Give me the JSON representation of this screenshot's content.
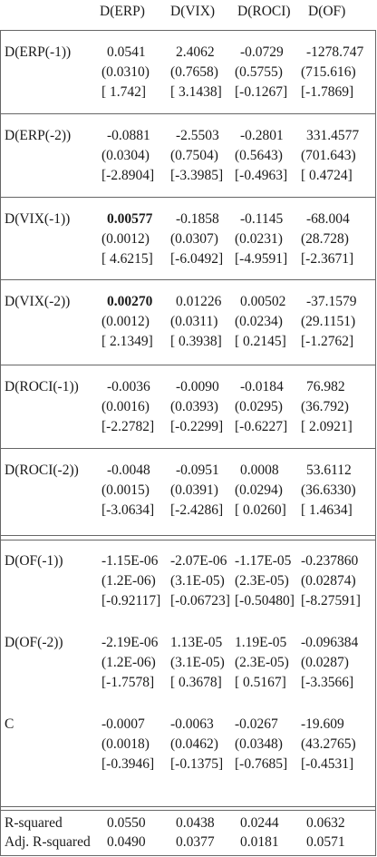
{
  "headers": [
    "D(ERP)",
    "D(VIX)",
    "D(ROCI)",
    "D(OF)"
  ],
  "blocks": [
    {
      "label": "D(ERP(-1))",
      "rows": [
        [
          "0.0541",
          "2.4062",
          "-0.0729",
          "-1278.747"
        ],
        [
          "(0.0310)",
          "(0.7658)",
          "(0.5755)",
          "(715.616)"
        ],
        [
          "[ 1.742]",
          "[ 3.1438]",
          "[-0.1267]",
          "[-1.7869]"
        ]
      ]
    },
    {
      "label": "D(ERP(-2))",
      "rows": [
        [
          "-0.0881",
          "-2.5503",
          "-0.2801",
          "331.4577"
        ],
        [
          "(0.0304)",
          "(0.7504)",
          "(0.5643)",
          "(701.643)"
        ],
        [
          "[-2.8904]",
          "[-3.3985]",
          "[-0.4963]",
          "[ 0.4724]"
        ]
      ]
    },
    {
      "label": "D(VIX(-1))",
      "rows": [
        [
          "0.00577",
          "-0.1858",
          "-0.1145",
          "-68.004"
        ],
        [
          "(0.0012)",
          "(0.0307)",
          "(0.0231)",
          "(28.728)"
        ],
        [
          "[ 4.6215]",
          "[-6.0492]",
          "[-4.9591]",
          "[-2.3671]"
        ]
      ]
    },
    {
      "label": "D(VIX(-2))",
      "rows": [
        [
          "0.00270",
          "0.01226",
          "0.00502",
          "-37.1579"
        ],
        [
          "(0.0012)",
          "(0.0311)",
          "(0.0234)",
          "(29.1151)"
        ],
        [
          "[ 2.1349]",
          "[ 0.3938]",
          "[ 0.2145]",
          "[-1.2762]"
        ]
      ]
    },
    {
      "label": "D(ROCI(-1))",
      "rows": [
        [
          "-0.0036",
          "-0.0090",
          "-0.0184",
          "76.982"
        ],
        [
          "(0.0016)",
          "(0.0393)",
          "(0.0295)",
          "(36.792)"
        ],
        [
          "[-2.2782]",
          "[-0.2299]",
          "[-0.6227]",
          "[ 2.0921]"
        ]
      ]
    },
    {
      "label": "D(ROCI(-2))",
      "rows": [
        [
          "-0.0048",
          "-0.0951",
          "0.0008",
          "53.6112"
        ],
        [
          "(0.0015)",
          "(0.0391)",
          "(0.0294)",
          "(36.6330)"
        ],
        [
          "[-3.0634]",
          "[-2.4286]",
          "[ 0.0260]",
          "[ 1.4634]"
        ]
      ]
    },
    {
      "label": "D(OF(-1))",
      "rows": [
        [
          "-1.15E-06",
          "-2.07E-06",
          "-1.17E-05",
          "-0.237860"
        ],
        [
          "(1.2E-06)",
          "(3.1E-05)",
          "(2.3E-05)",
          "(0.02874)"
        ],
        [
          "[-0.92117]",
          "[-0.06723]",
          "[-0.50480]",
          "[-8.27591]"
        ]
      ]
    },
    {
      "label": "D(OF(-2))",
      "rows": [
        [
          "-2.19E-06",
          "1.13E-05",
          "1.19E-05",
          "-0.096384"
        ],
        [
          "(1.2E-06)",
          "(3.1E-05)",
          "(2.3E-05)",
          "(0.0287)"
        ],
        [
          "[-1.7578]",
          "[ 0.3678]",
          "[ 0.5167]",
          "[-3.3566]"
        ]
      ]
    },
    {
      "label": "C",
      "rows": [
        [
          "-0.0007",
          "-0.0063",
          "-0.0267",
          "-19.609"
        ],
        [
          "(0.0018)",
          "(0.0462)",
          "(0.0348)",
          "(43.2765)"
        ],
        [
          "[-0.3946]",
          "[-0.1375]",
          "[-0.7685]",
          "[-0.4531]"
        ]
      ]
    }
  ],
  "stats": [
    {
      "label": "R-squared",
      "values": [
        "0.0550",
        "0.0438",
        "0.0244",
        "0.0632"
      ]
    },
    {
      "label": "Adj. R-squared",
      "values": [
        "0.0490",
        "0.0377",
        "0.0181",
        "0.0571"
      ]
    }
  ]
}
